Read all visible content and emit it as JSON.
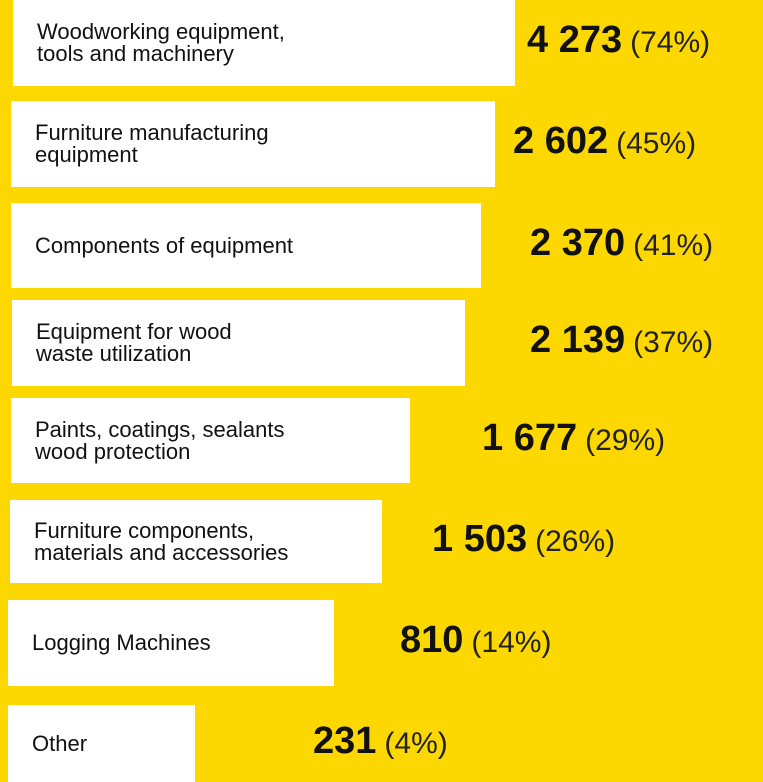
{
  "chart_data": {
    "type": "bar",
    "categories": [
      "Woodworking equipment,\ntools and machinery",
      "Furniture manufacturing\nequipment",
      "Components of equipment",
      "Equipment for wood\nwaste utilization",
      "Paints, coatings, sealants\nwood protection",
      "Furniture components,\nmaterials and accessories",
      "Logging Machines",
      "Other"
    ],
    "values": [
      4273,
      2602,
      2370,
      2139,
      1677,
      1503,
      810,
      231
    ],
    "value_labels": [
      "4 273",
      "2 602",
      "2 370",
      "2 139",
      "1 677",
      "1 503",
      "810",
      "231"
    ],
    "shares": [
      74,
      45,
      41,
      37,
      29,
      26,
      14,
      4
    ],
    "share_labels": [
      "(74%)",
      "(45%)",
      "(41%)",
      "(37%)",
      "(29%)",
      "(26%)",
      "(14%)",
      "(4%)"
    ],
    "color": "#fdd800"
  }
}
